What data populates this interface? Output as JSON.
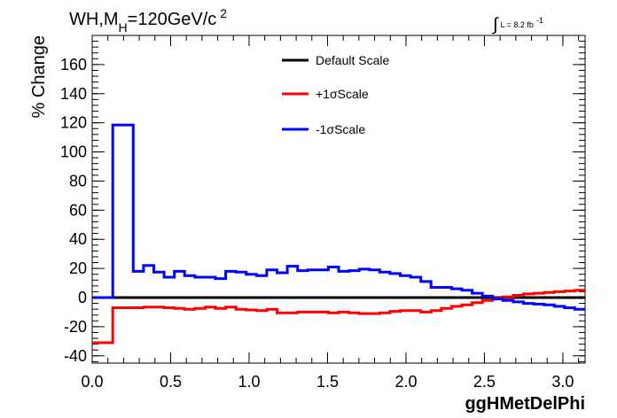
{
  "chart_data": {
    "type": "line",
    "style": "step-histogram",
    "title": {
      "prefix": "WH,M",
      "subscript": "H",
      "main": "=120GeV/c",
      "superscript": "2"
    },
    "luminosity": {
      "integral_symbol": "∫",
      "text": "L = 8.2 fb",
      "superscript": "-1"
    },
    "xlabel": "ggHMetDelPhi",
    "ylabel": "% Change",
    "xlim": [
      0.0,
      3.1416
    ],
    "ylim": [
      -45,
      180
    ],
    "x_ticks": [
      "0.0",
      "0.5",
      "1.0",
      "1.5",
      "2.0",
      "2.5",
      "3.0"
    ],
    "y_ticks": [
      "-40",
      "-20",
      "0",
      "20",
      "40",
      "60",
      "80",
      "100",
      "120",
      "140",
      "160"
    ],
    "bin_edges": [
      0.0,
      0.1309,
      0.2618,
      0.3272,
      0.3927,
      0.4581,
      0.5236,
      0.589,
      0.6545,
      0.7199,
      0.7854,
      0.8508,
      0.9163,
      0.9817,
      1.0472,
      1.1126,
      1.1781,
      1.2435,
      1.309,
      1.3744,
      1.4399,
      1.5053,
      1.5708,
      1.6362,
      1.7017,
      1.7671,
      1.8326,
      1.898,
      1.9635,
      2.0289,
      2.0944,
      2.1598,
      2.2253,
      2.2907,
      2.3562,
      2.4216,
      2.4871,
      2.5525,
      2.618,
      2.6834,
      2.7489,
      2.8143,
      2.8798,
      2.9452,
      3.0107,
      3.0761,
      3.1416
    ],
    "legend_position": "top-center",
    "series": [
      {
        "name": "Default Scale",
        "color": "#000000",
        "values": [
          0,
          0,
          0,
          0,
          0,
          0,
          0,
          0,
          0,
          0,
          0,
          0,
          0,
          0,
          0,
          0,
          0,
          0,
          0,
          0,
          0,
          0,
          0,
          0,
          0,
          0,
          0,
          0,
          0,
          0,
          0,
          0,
          0,
          0,
          0,
          0,
          0,
          0,
          0,
          0,
          0,
          0,
          0,
          0,
          0,
          0
        ]
      },
      {
        "name": "+1σScale",
        "color": "#ff0000",
        "values": [
          -31,
          -7,
          -7,
          -6.5,
          -6.5,
          -7,
          -7.5,
          -8,
          -7.5,
          -6.5,
          -7.5,
          -6.5,
          -8,
          -8.5,
          -9,
          -8,
          -10.5,
          -10.5,
          -10,
          -10,
          -10,
          -10.5,
          -10,
          -10.5,
          -11,
          -11,
          -10.5,
          -9.5,
          -9,
          -9,
          -10,
          -9,
          -7.5,
          -6,
          -5,
          -3.5,
          -2,
          -0.5,
          0.5,
          1.5,
          2.5,
          3,
          3.5,
          4,
          4.5,
          5
        ]
      },
      {
        "name": "-1σScale",
        "color": "#0000ff",
        "values": [
          0,
          118.5,
          18,
          22,
          17.5,
          14,
          18,
          15,
          14,
          14,
          13,
          18,
          17.5,
          16,
          15,
          19,
          17,
          21.5,
          18.5,
          19,
          19,
          21,
          18,
          18.5,
          19.5,
          19,
          17.5,
          16.5,
          15,
          14,
          11,
          7,
          7,
          6,
          5,
          3,
          1,
          -1,
          -2,
          -3,
          -4,
          -4.5,
          -5,
          -6,
          -7,
          -8
        ]
      }
    ]
  }
}
